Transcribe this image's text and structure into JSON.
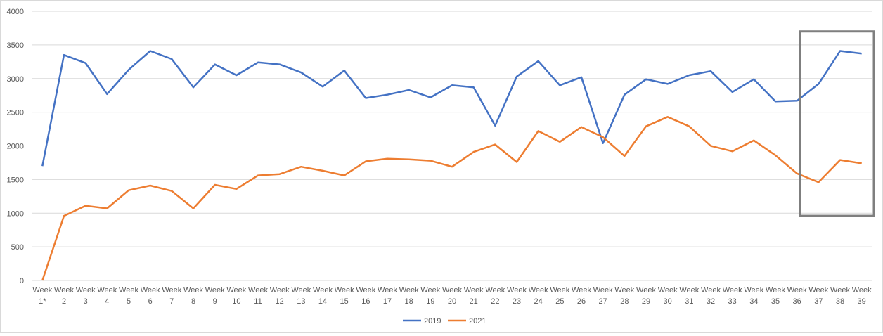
{
  "chart_data": {
    "type": "line",
    "title": "",
    "xlabel": "",
    "ylabel": "",
    "ylim": [
      0,
      4000
    ],
    "yticks": [
      0,
      500,
      1000,
      1500,
      2000,
      2500,
      3000,
      3500,
      4000
    ],
    "grid": true,
    "legend_position": "bottom",
    "categories": [
      [
        "Week",
        "1*"
      ],
      [
        "Week",
        "2"
      ],
      [
        "Week",
        "3"
      ],
      [
        "Week",
        "4"
      ],
      [
        "Week",
        "5"
      ],
      [
        "Week",
        "6"
      ],
      [
        "Week",
        "7"
      ],
      [
        "Week",
        "8"
      ],
      [
        "Week",
        "9"
      ],
      [
        "Week",
        "10"
      ],
      [
        "Week",
        "11"
      ],
      [
        "Week",
        "12"
      ],
      [
        "Week",
        "13"
      ],
      [
        "Week",
        "14"
      ],
      [
        "Week",
        "15"
      ],
      [
        "Week",
        "16"
      ],
      [
        "Week",
        "17"
      ],
      [
        "Week",
        "18"
      ],
      [
        "Week",
        "19"
      ],
      [
        "Week",
        "20"
      ],
      [
        "Week",
        "21"
      ],
      [
        "Week",
        "22"
      ],
      [
        "Week",
        "23"
      ],
      [
        "Week",
        "24"
      ],
      [
        "Week",
        "25"
      ],
      [
        "Week",
        "26"
      ],
      [
        "Week",
        "27"
      ],
      [
        "Week",
        "28"
      ],
      [
        "Week",
        "29"
      ],
      [
        "Week",
        "30"
      ],
      [
        "Week",
        "31"
      ],
      [
        "Week",
        "32"
      ],
      [
        "Week",
        "33"
      ],
      [
        "Week",
        "34"
      ],
      [
        "Week",
        "35"
      ],
      [
        "Week",
        "36"
      ],
      [
        "Week",
        "37"
      ],
      [
        "Week",
        "38"
      ],
      [
        "Week",
        "39"
      ]
    ],
    "series": [
      {
        "name": "2019",
        "color": "#4472c4",
        "values": [
          1700,
          3350,
          3230,
          2770,
          3130,
          3410,
          3290,
          2870,
          3210,
          3050,
          3240,
          3210,
          3090,
          2880,
          3120,
          2710,
          2760,
          2830,
          2720,
          2900,
          2870,
          2300,
          3030,
          3260,
          2900,
          3020,
          2040,
          2760,
          2990,
          2920,
          3050,
          3110,
          2800,
          2990,
          2660,
          2670,
          2920,
          3410,
          3370
        ]
      },
      {
        "name": "2021",
        "color": "#ed7d31",
        "values": [
          0,
          960,
          1110,
          1070,
          1340,
          1410,
          1330,
          1070,
          1420,
          1360,
          1560,
          1580,
          1690,
          1630,
          1560,
          1770,
          1810,
          1800,
          1780,
          1690,
          1910,
          2020,
          1760,
          2220,
          2060,
          2280,
          2130,
          1850,
          2290,
          2430,
          2290,
          2000,
          1920,
          2080,
          1860,
          1590,
          1460,
          1790,
          1740
        ]
      }
    ],
    "highlight_box": {
      "from_category_index": 35,
      "to_category_index": 38,
      "y_range": [
        960,
        3700
      ],
      "color": "#7f7f7f"
    }
  }
}
